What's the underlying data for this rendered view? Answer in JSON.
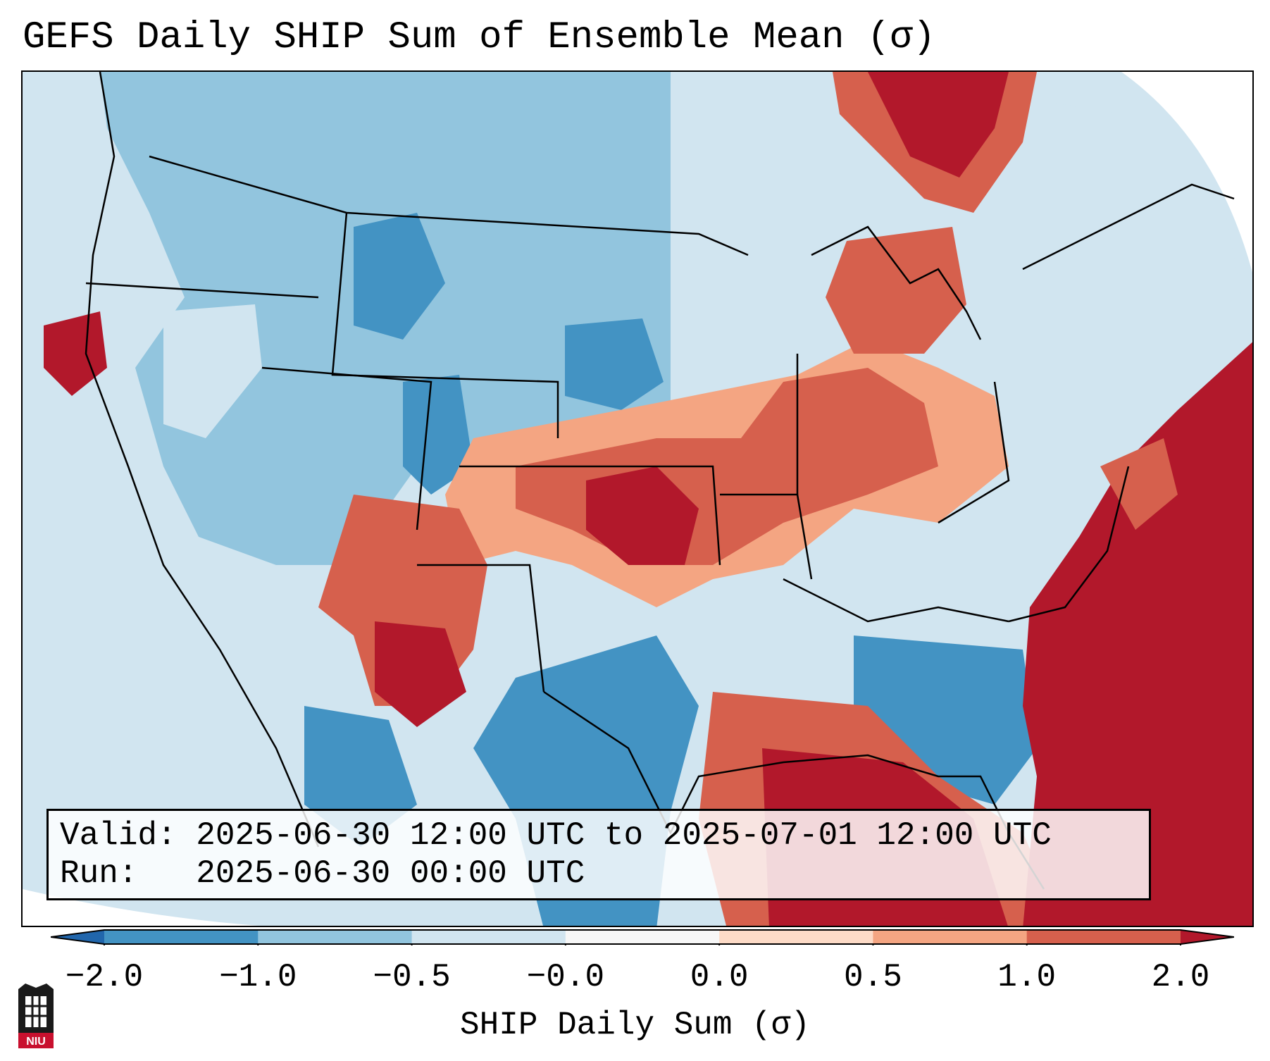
{
  "title": "GEFS Daily SHIP Sum of Ensemble Mean (σ)",
  "info": {
    "valid_line": "Valid: 2025-06-30 12:00 UTC to 2025-07-01 12:00 UTC",
    "run_line": "Run:   2025-06-30 00:00 UTC"
  },
  "colorbar": {
    "label": "SHIP Daily Sum (σ)",
    "ticks": [
      "−2.0",
      "−1.0",
      "−0.5",
      "−0.0",
      "0.0",
      "0.5",
      "1.0",
      "2.0"
    ],
    "bins": [
      {
        "from": -2.0,
        "to": -1.0,
        "color": "#4393c3"
      },
      {
        "from": -1.0,
        "to": -0.5,
        "color": "#92c5de"
      },
      {
        "from": -0.5,
        "to": -0.0,
        "color": "#d1e5f0"
      },
      {
        "from": -0.0,
        "to": 0.0,
        "color": "#f7f7f7"
      },
      {
        "from": 0.0,
        "to": 0.5,
        "color": "#fddbc7"
      },
      {
        "from": 0.5,
        "to": 1.0,
        "color": "#f4a582"
      },
      {
        "from": 1.0,
        "to": 2.0,
        "color": "#d6604d"
      }
    ],
    "under_color": "#2166ac",
    "over_color": "#b2182b"
  },
  "logo": {
    "text": "NIU",
    "color": "#c8102e"
  }
}
